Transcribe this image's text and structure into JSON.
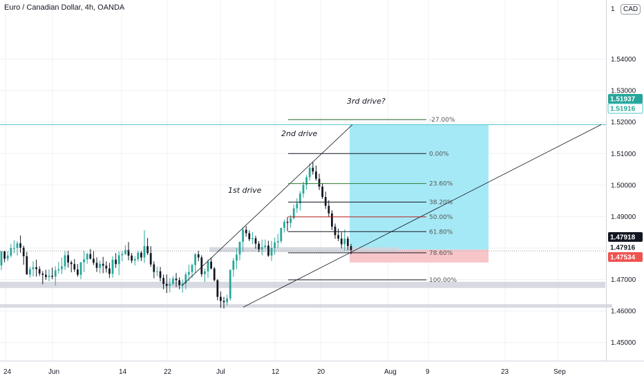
{
  "header": {
    "title": "Euro / Canadian Dollar, 4h, OANDA",
    "currency_badge": "CAD",
    "top_price_partial": "1"
  },
  "chart_data": {
    "type": "candlestick",
    "title": "Euro / Canadian Dollar, 4h, OANDA",
    "currency": "CAD",
    "ylim": [
      1.4415,
      1.5625
    ],
    "price_ticks": [
      "1.54000",
      "1.53000",
      "1.52000",
      "1.51000",
      "1.50000",
      "1.49000",
      "1.48000",
      "1.47000",
      "1.46000",
      "1.45000"
    ],
    "date_ticks": [
      "24",
      "Jun",
      "14",
      "22",
      "Jul",
      "12",
      "20",
      "Aug",
      "9",
      "23",
      "Sep"
    ],
    "price_tags": [
      {
        "label": "1.51937",
        "style": "teal"
      },
      {
        "label": "1.51916",
        "style": "teal-outline"
      },
      {
        "label": "1.47918",
        "style": "dark"
      },
      {
        "label": "1.47916",
        "style": "plain"
      },
      {
        "label": "1.47534",
        "style": "red"
      }
    ],
    "colors": {
      "up": "#26a69a",
      "down": "#131722",
      "profit_zone": "#a6e9f6",
      "loss_zone": "#f7c6c9",
      "level_line": "#4fc3c9"
    },
    "annotations": [
      "1st drive",
      "2nd drive",
      "3rd drive?"
    ],
    "fib_levels": [
      {
        "label": "-27.00%",
        "price": 1.5208,
        "color": "#1b5e20"
      },
      {
        "label": "0.00%",
        "price": 1.51,
        "color": "#131722"
      },
      {
        "label": "23.60%",
        "price": 1.5005,
        "color": "#2e7d32"
      },
      {
        "label": "38.20%",
        "price": 1.4946,
        "color": "#131722"
      },
      {
        "label": "50.00%",
        "price": 1.4899,
        "color": "#b71c1c"
      },
      {
        "label": "61.80%",
        "price": 1.4852,
        "color": "#131722"
      },
      {
        "label": "78.60%",
        "price": 1.4785,
        "color": "#131722"
      },
      {
        "label": "100.00%",
        "price": 1.4699,
        "color": "#131722"
      }
    ],
    "horizontal_level": 1.5192,
    "zones": [
      {
        "name": "support-zone-upper",
        "price": 1.4795
      },
      {
        "name": "support-zone-mid",
        "price": 1.4683
      },
      {
        "name": "support-zone-low",
        "price": 1.4616
      }
    ],
    "position": {
      "entry": 1.4795,
      "target": 1.5192,
      "stop": 1.4754
    },
    "ohlc": [
      [
        1.4745,
        1.479,
        1.473,
        1.479
      ],
      [
        1.479,
        1.479,
        1.4755,
        1.4766
      ],
      [
        1.4766,
        1.479,
        1.4758,
        1.4776
      ],
      [
        1.4776,
        1.4813,
        1.477,
        1.48
      ],
      [
        1.48,
        1.4824,
        1.4783,
        1.48
      ],
      [
        1.48,
        1.4822,
        1.4776,
        1.4815
      ],
      [
        1.4815,
        1.484,
        1.4785,
        1.4801
      ],
      [
        1.4801,
        1.4808,
        1.4747,
        1.4774
      ],
      [
        1.4774,
        1.4788,
        1.4716,
        1.4716
      ],
      [
        1.4716,
        1.4741,
        1.4706,
        1.4733
      ],
      [
        1.4733,
        1.4758,
        1.471,
        1.4739
      ],
      [
        1.4739,
        1.4763,
        1.4709,
        1.4733
      ],
      [
        1.4733,
        1.4742,
        1.4711,
        1.4719
      ],
      [
        1.4719,
        1.4727,
        1.4685,
        1.4715
      ],
      [
        1.4715,
        1.4731,
        1.4699,
        1.4708
      ],
      [
        1.4708,
        1.4732,
        1.4695,
        1.4712
      ],
      [
        1.4712,
        1.4738,
        1.4701,
        1.4709
      ],
      [
        1.4709,
        1.4742,
        1.4681,
        1.4729
      ],
      [
        1.4729,
        1.4756,
        1.4719,
        1.4733
      ],
      [
        1.4733,
        1.477,
        1.4717,
        1.4742
      ],
      [
        1.4742,
        1.4791,
        1.473,
        1.4777
      ],
      [
        1.4777,
        1.4791,
        1.4738,
        1.4754
      ],
      [
        1.4754,
        1.476,
        1.4723,
        1.4749
      ],
      [
        1.4749,
        1.4765,
        1.4724,
        1.4732
      ],
      [
        1.4732,
        1.4749,
        1.4709,
        1.4715
      ],
      [
        1.4715,
        1.4755,
        1.4701,
        1.4755
      ],
      [
        1.4755,
        1.4791,
        1.4724,
        1.4764
      ],
      [
        1.4764,
        1.4785,
        1.475,
        1.4781
      ],
      [
        1.4781,
        1.4797,
        1.4764,
        1.4766
      ],
      [
        1.4766,
        1.4791,
        1.4746,
        1.4753
      ],
      [
        1.4753,
        1.477,
        1.4724,
        1.4737
      ],
      [
        1.4737,
        1.476,
        1.4719,
        1.475
      ],
      [
        1.475,
        1.4772,
        1.472,
        1.4744
      ],
      [
        1.4744,
        1.4758,
        1.4722,
        1.4735
      ],
      [
        1.4735,
        1.4753,
        1.4705,
        1.4718
      ],
      [
        1.4718,
        1.4774,
        1.4706,
        1.4763
      ],
      [
        1.4763,
        1.4784,
        1.4737,
        1.4749
      ],
      [
        1.4749,
        1.479,
        1.4714,
        1.4777
      ],
      [
        1.4777,
        1.479,
        1.4758,
        1.4781
      ],
      [
        1.4781,
        1.4809,
        1.4778,
        1.4794
      ],
      [
        1.4794,
        1.4819,
        1.4761,
        1.4776
      ],
      [
        1.4776,
        1.4784,
        1.4752,
        1.476
      ],
      [
        1.476,
        1.4774,
        1.4745,
        1.4765
      ],
      [
        1.4765,
        1.4791,
        1.4757,
        1.4785
      ],
      [
        1.4785,
        1.4792,
        1.4759,
        1.477
      ],
      [
        1.477,
        1.4857,
        1.4753,
        1.4806
      ],
      [
        1.4806,
        1.4832,
        1.4778,
        1.4784
      ],
      [
        1.4784,
        1.4806,
        1.474,
        1.4748
      ],
      [
        1.4748,
        1.4758,
        1.4704,
        1.4724
      ],
      [
        1.4724,
        1.4741,
        1.471,
        1.4726
      ],
      [
        1.4726,
        1.474,
        1.4694,
        1.4705
      ],
      [
        1.4705,
        1.4716,
        1.4669,
        1.4686
      ],
      [
        1.4686,
        1.4716,
        1.4657,
        1.468
      ],
      [
        1.468,
        1.4705,
        1.4659,
        1.4686
      ],
      [
        1.4686,
        1.4711,
        1.4681,
        1.4703
      ],
      [
        1.4703,
        1.4721,
        1.4676,
        1.4698
      ],
      [
        1.4698,
        1.4707,
        1.4669,
        1.4682
      ],
      [
        1.4682,
        1.47,
        1.4658,
        1.4687
      ],
      [
        1.4687,
        1.4724,
        1.4669,
        1.4716
      ],
      [
        1.4716,
        1.4747,
        1.4694,
        1.4724
      ],
      [
        1.4724,
        1.4751,
        1.4705,
        1.4746
      ],
      [
        1.4746,
        1.4784,
        1.4721,
        1.478
      ],
      [
        1.478,
        1.4791,
        1.4758,
        1.477
      ],
      [
        1.477,
        1.4777,
        1.4709,
        1.4717
      ],
      [
        1.4717,
        1.4735,
        1.4692,
        1.4726
      ],
      [
        1.4726,
        1.4764,
        1.4705,
        1.4757
      ],
      [
        1.4757,
        1.477,
        1.4732,
        1.4735
      ],
      [
        1.4735,
        1.474,
        1.4694,
        1.4698
      ],
      [
        1.4698,
        1.4701,
        1.4634,
        1.4645
      ],
      [
        1.4645,
        1.4662,
        1.461,
        1.4632
      ],
      [
        1.4632,
        1.4645,
        1.4608,
        1.4628
      ],
      [
        1.4628,
        1.4652,
        1.4617,
        1.464
      ],
      [
        1.464,
        1.4731,
        1.4633,
        1.4731
      ],
      [
        1.4731,
        1.4769,
        1.4709,
        1.476
      ],
      [
        1.476,
        1.48,
        1.4733,
        1.4779
      ],
      [
        1.4779,
        1.482,
        1.4761,
        1.482
      ],
      [
        1.482,
        1.4866,
        1.4787,
        1.4858
      ],
      [
        1.4858,
        1.487,
        1.4836,
        1.4847
      ],
      [
        1.4847,
        1.4856,
        1.4822,
        1.4828
      ],
      [
        1.4828,
        1.4851,
        1.4812,
        1.4831
      ],
      [
        1.4831,
        1.4839,
        1.4798,
        1.4814
      ],
      [
        1.4814,
        1.4822,
        1.4787,
        1.4796
      ],
      [
        1.4796,
        1.4827,
        1.4777,
        1.4803
      ],
      [
        1.4803,
        1.4827,
        1.4798,
        1.4808
      ],
      [
        1.4808,
        1.4823,
        1.4772,
        1.4776
      ],
      [
        1.4776,
        1.4823,
        1.4759,
        1.48
      ],
      [
        1.48,
        1.4833,
        1.4779,
        1.4818
      ],
      [
        1.4818,
        1.4845,
        1.48,
        1.4822
      ],
      [
        1.4822,
        1.4864,
        1.4815,
        1.4864
      ],
      [
        1.4864,
        1.489,
        1.4849,
        1.4883
      ],
      [
        1.4883,
        1.4899,
        1.4853,
        1.488
      ],
      [
        1.488,
        1.4905,
        1.4864,
        1.4895
      ],
      [
        1.4895,
        1.4938,
        1.4891,
        1.4926
      ],
      [
        1.4926,
        1.4958,
        1.4912,
        1.4942
      ],
      [
        1.4942,
        1.4981,
        1.4919,
        1.4973
      ],
      [
        1.4973,
        1.5011,
        1.496,
        1.5001
      ],
      [
        1.5001,
        1.5032,
        1.4985,
        1.5025
      ],
      [
        1.5025,
        1.5069,
        1.5014,
        1.5055
      ],
      [
        1.5055,
        1.5073,
        1.5033,
        1.5043
      ],
      [
        1.5043,
        1.5062,
        1.5014,
        1.502
      ],
      [
        1.502,
        1.5036,
        1.4984,
        1.4995
      ],
      [
        1.4995,
        1.5006,
        1.4956,
        1.4962
      ],
      [
        1.4962,
        1.4979,
        1.4924,
        1.4934
      ],
      [
        1.4934,
        1.4952,
        1.4899,
        1.491
      ],
      [
        1.491,
        1.492,
        1.4857,
        1.4868
      ],
      [
        1.4868,
        1.4878,
        1.4829,
        1.4841
      ],
      [
        1.4841,
        1.4862,
        1.4822,
        1.483
      ],
      [
        1.483,
        1.485,
        1.4799,
        1.4812
      ],
      [
        1.4812,
        1.4859,
        1.4791,
        1.483
      ],
      [
        1.483,
        1.4837,
        1.4793,
        1.4806
      ],
      [
        1.4806,
        1.4813,
        1.478,
        1.4793
      ]
    ]
  }
}
